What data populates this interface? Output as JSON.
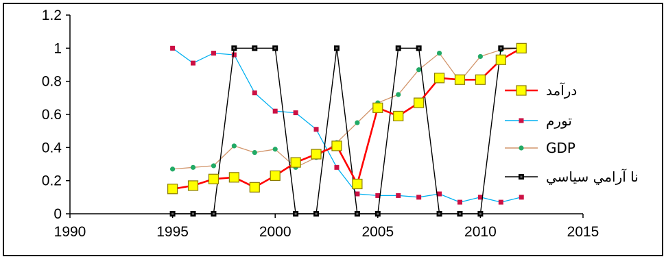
{
  "chart_data": {
    "type": "line",
    "title": "",
    "xlabel": "",
    "ylabel": "",
    "xlim": [
      1990,
      2015
    ],
    "ylim": [
      0,
      1.2
    ],
    "grid": false,
    "legend_position": "right",
    "x_ticks": [
      "1990",
      "1995",
      "2000",
      "2005",
      "2010",
      "2015"
    ],
    "y_ticks": [
      "0",
      "0.2",
      "0.4",
      "0.6",
      "0.8",
      "1",
      "1.2"
    ],
    "x": [
      1995,
      1996,
      1997,
      1998,
      1999,
      2000,
      2001,
      2002,
      2003,
      2004,
      2005,
      2006,
      2007,
      2008,
      2009,
      2010,
      2011,
      2012
    ],
    "series": [
      {
        "name": "درآمد",
        "color": "#ff0000",
        "marker": "square-yellow",
        "marker_color": "#ffff00",
        "values": [
          0.15,
          0.17,
          0.21,
          0.22,
          0.16,
          0.23,
          0.31,
          0.36,
          0.41,
          0.18,
          0.64,
          0.59,
          0.67,
          0.82,
          0.81,
          0.81,
          0.93,
          1.0
        ]
      },
      {
        "name": "تورم",
        "color": "#00b0f0",
        "marker": "square-small",
        "marker_color": "#cc1144",
        "values": [
          1.0,
          0.91,
          0.97,
          0.96,
          0.73,
          0.62,
          0.61,
          0.51,
          0.28,
          0.12,
          0.11,
          0.11,
          0.1,
          0.12,
          0.07,
          0.1,
          0.07,
          0.1
        ]
      },
      {
        "name": "GDP",
        "color": "#d2956b",
        "marker": "dot",
        "marker_color": "#22aa66",
        "values": [
          0.27,
          0.28,
          0.29,
          0.41,
          0.37,
          0.39,
          0.28,
          0.34,
          0.43,
          0.55,
          0.67,
          0.72,
          0.87,
          0.97,
          0.8,
          0.95,
          0.99,
          1.0
        ]
      },
      {
        "name": "نا آرامي سياسي",
        "color": "#000000",
        "marker": "square-dark",
        "marker_color": "#000000",
        "values": [
          0,
          0,
          0,
          1,
          1,
          1,
          0,
          0,
          1,
          0,
          0,
          1,
          1,
          0,
          0,
          0,
          1,
          1
        ]
      }
    ]
  }
}
